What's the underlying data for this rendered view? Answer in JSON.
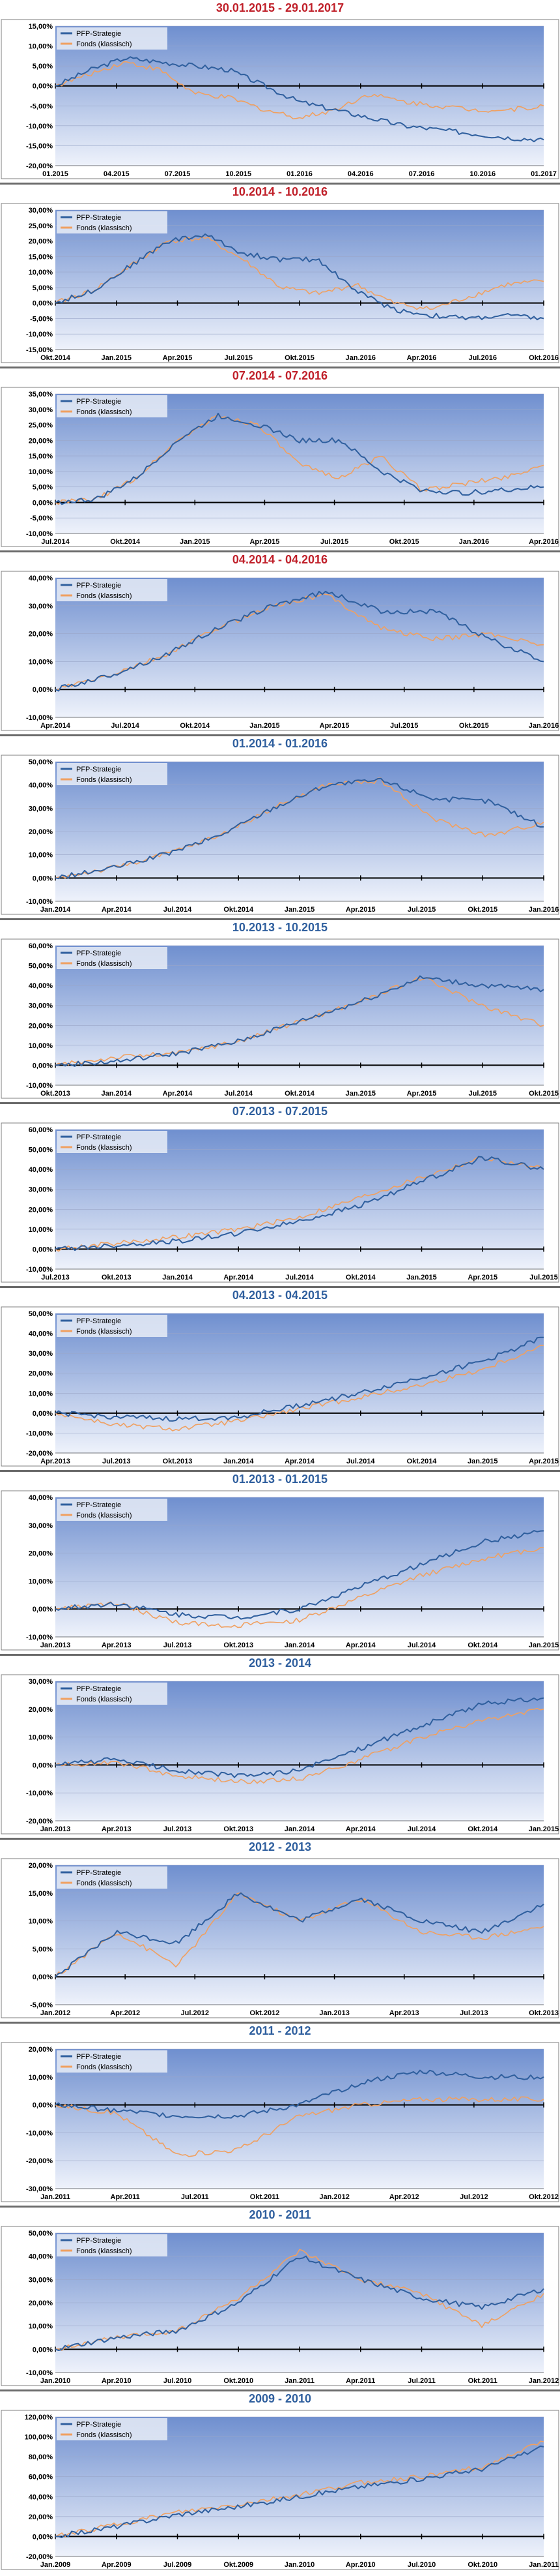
{
  "colors": {
    "strategy": "#2f5f9e",
    "fund": "#f0a060",
    "title_red": "#c0202a",
    "title_blue": "#2f5f9e"
  },
  "legend": {
    "strategy": "PFP-Strategie",
    "fund": "Fonds (klassisch)"
  },
  "chart_data": [
    {
      "type": "line",
      "title": "30.01.2015 - 29.01.2017",
      "title_color": "red",
      "ylim": [
        -20,
        15
      ],
      "yticks": [
        "15,00%",
        "10,00%",
        "5,00%",
        "0,00%",
        "-5,00%",
        "-10,00%",
        "-15,00%",
        "-20,00%"
      ],
      "xticks": [
        "01.2015",
        "04.2015",
        "07.2015",
        "10.2015",
        "01.2016",
        "04.2016",
        "07.2016",
        "10.2016",
        "01.2017"
      ],
      "series": [
        {
          "name": "PFP-Strategie",
          "values": [
            0,
            4,
            7,
            6,
            5,
            4,
            0,
            -4,
            -6,
            -8,
            -10,
            -11,
            -12,
            -13,
            -13.5
          ]
        },
        {
          "name": "Fonds (klassisch)",
          "values": [
            0,
            3,
            6,
            4,
            -2,
            -3,
            -6,
            -8,
            -6,
            -2,
            -4,
            -5,
            -6,
            -6,
            -5
          ]
        }
      ]
    },
    {
      "type": "line",
      "title": "10.2014 - 10.2016",
      "title_color": "red",
      "ylim": [
        -15,
        30
      ],
      "yticks": [
        "30,00%",
        "25,00%",
        "20,00%",
        "15,00%",
        "10,00%",
        "5,00%",
        "0,00%",
        "-5,00%",
        "-10,00%",
        "-15,00%"
      ],
      "xticks": [
        "Okt.2014",
        "Jan.2015",
        "Apr.2015",
        "Jul.2015",
        "Okt.2015",
        "Jan.2016",
        "Apr.2016",
        "Jul.2016",
        "Okt.2016"
      ],
      "series": [
        {
          "name": "PFP-Strategie",
          "values": [
            0,
            4,
            12,
            20,
            22,
            16,
            14,
            14,
            4,
            -2,
            -4,
            -5,
            -4,
            -5
          ]
        },
        {
          "name": "Fonds (klassisch)",
          "values": [
            0,
            4,
            12,
            20,
            21,
            14,
            5,
            3,
            6,
            0,
            -2,
            2,
            6,
            7
          ]
        }
      ]
    },
    {
      "type": "line",
      "title": "07.2014 - 07.2016",
      "title_color": "red",
      "ylim": [
        -10,
        35
      ],
      "yticks": [
        "35,00%",
        "30,00%",
        "25,00%",
        "20,00%",
        "15,00%",
        "10,00%",
        "5,00%",
        "0,00%",
        "-5,00%",
        "-10,00%"
      ],
      "xticks": [
        "Jul.2014",
        "Okt.2014",
        "Jan.2015",
        "Apr.2015",
        "Jul.2015",
        "Okt.2015",
        "Jan.2016",
        "Apr.2016"
      ],
      "series": [
        {
          "name": "PFP-Strategie",
          "values": [
            0,
            1,
            8,
            20,
            28,
            25,
            20,
            20,
            10,
            4,
            3,
            4,
            5
          ]
        },
        {
          "name": "Fonds (klassisch)",
          "values": [
            0,
            1,
            8,
            20,
            28,
            25,
            12,
            8,
            15,
            4,
            6,
            8,
            12
          ]
        }
      ]
    },
    {
      "type": "line",
      "title": "04.2014 - 04.2016",
      "title_color": "red",
      "ylim": [
        -10,
        40
      ],
      "yticks": [
        "40,00%",
        "30,00%",
        "20,00%",
        "10,00%",
        "0,00%",
        "-10,00%"
      ],
      "xticks": [
        "Apr.2014",
        "Jul.2014",
        "Okt.2014",
        "Jan.2015",
        "Apr.2015",
        "Jul.2015",
        "Okt.2015",
        "Jan.2016"
      ],
      "series": [
        {
          "name": "PFP-Strategie",
          "values": [
            0,
            5,
            12,
            22,
            30,
            35,
            28,
            28,
            18,
            10
          ]
        },
        {
          "name": "Fonds (klassisch)",
          "values": [
            0,
            5,
            12,
            22,
            30,
            34,
            22,
            18,
            20,
            16
          ]
        }
      ]
    },
    {
      "type": "line",
      "title": "01.2014 - 01.2016",
      "title_color": "blue",
      "ylim": [
        -10,
        50
      ],
      "yticks": [
        "50,00%",
        "40,00%",
        "30,00%",
        "20,00%",
        "10,00%",
        "0,00%",
        "-10,00%"
      ],
      "xticks": [
        "Jan.2014",
        "Apr.2014",
        "Jul.2014",
        "Okt.2014",
        "Jan.2015",
        "Apr.2015",
        "Jul.2015",
        "Okt.2015",
        "Jan.2016"
      ],
      "series": [
        {
          "name": "PFP-Strategie",
          "values": [
            0,
            4,
            10,
            18,
            30,
            40,
            42,
            34,
            33,
            22
          ]
        },
        {
          "name": "Fonds (klassisch)",
          "values": [
            0,
            4,
            10,
            18,
            30,
            40,
            42,
            25,
            18,
            24
          ]
        }
      ]
    },
    {
      "type": "line",
      "title": "10.2013 - 10.2015",
      "title_color": "blue",
      "ylim": [
        -10,
        60
      ],
      "yticks": [
        "60,00%",
        "50,00%",
        "40,00%",
        "30,00%",
        "20,00%",
        "10,00%",
        "0,00%",
        "-10,00%"
      ],
      "xticks": [
        "Okt.2013",
        "Jan.2014",
        "Apr.2014",
        "Jul.2014",
        "Okt.2014",
        "Jan.2015",
        "Apr.2015",
        "Jul.2015",
        "Okt.2015"
      ],
      "series": [
        {
          "name": "PFP-Strategie",
          "values": [
            0,
            2,
            6,
            12,
            22,
            32,
            44,
            40,
            38
          ]
        },
        {
          "name": "Fonds (klassisch)",
          "values": [
            0,
            4,
            6,
            12,
            22,
            32,
            44,
            30,
            20
          ]
        }
      ]
    },
    {
      "type": "line",
      "title": "07.2013 - 07.2015",
      "title_color": "blue",
      "ylim": [
        -10,
        60
      ],
      "yticks": [
        "60,00%",
        "50,00%",
        "40,00%",
        "30,00%",
        "20,00%",
        "10,00%",
        "0,00%",
        "-10,00%"
      ],
      "xticks": [
        "Jul.2013",
        "Okt.2013",
        "Jan.2014",
        "Apr.2014",
        "Jul.2014",
        "Okt.2014",
        "Jan.2015",
        "Apr.2015",
        "Jul.2015"
      ],
      "series": [
        {
          "name": "PFP-Strategie",
          "values": [
            0,
            2,
            4,
            8,
            14,
            22,
            34,
            46,
            40
          ]
        },
        {
          "name": "Fonds (klassisch)",
          "values": [
            0,
            3,
            6,
            10,
            16,
            26,
            36,
            46,
            40
          ]
        }
      ]
    },
    {
      "type": "line",
      "title": "04.2013 - 04.2015",
      "title_color": "blue",
      "ylim": [
        -20,
        50
      ],
      "yticks": [
        "50,00%",
        "40,00%",
        "30,00%",
        "20,00%",
        "10,00%",
        "0,00%",
        "-10,00%",
        "-20,00%"
      ],
      "xticks": [
        "Apr.2013",
        "Jul.2013",
        "Okt.2013",
        "Jan.2014",
        "Apr.2014",
        "Jul.2014",
        "Okt.2014",
        "Jan.2015",
        "Apr.2015"
      ],
      "series": [
        {
          "name": "PFP-Strategie",
          "values": [
            0,
            -2,
            -3,
            -2,
            4,
            10,
            18,
            26,
            38
          ]
        },
        {
          "name": "Fonds (klassisch)",
          "values": [
            0,
            -6,
            -8,
            -4,
            2,
            8,
            14,
            22,
            34
          ]
        }
      ]
    },
    {
      "type": "line",
      "title": "01.2013 - 01.2015",
      "title_color": "blue",
      "ylim": [
        -10,
        40
      ],
      "yticks": [
        "40,00%",
        "30,00%",
        "20,00%",
        "10,00%",
        "0,00%",
        "-10,00%"
      ],
      "xticks": [
        "Jan.2013",
        "Apr.2013",
        "Jul.2013",
        "Okt.2013",
        "Jan.2014",
        "Apr.2014",
        "Jul.2014",
        "Okt.2014",
        "Jan.2015"
      ],
      "series": [
        {
          "name": "PFP-Strategie",
          "values": [
            0,
            2,
            -2,
            -3,
            0,
            8,
            16,
            24,
            28
          ]
        },
        {
          "name": "Fonds (klassisch)",
          "values": [
            0,
            2,
            -5,
            -6,
            -4,
            4,
            12,
            18,
            22
          ]
        }
      ]
    },
    {
      "type": "line",
      "title": "2013 - 2014",
      "title_color": "blue",
      "ylim": [
        -20,
        30
      ],
      "yticks": [
        "30,00%",
        "20,00%",
        "10,00%",
        "0,00%",
        "-10,00%",
        "-20,00%"
      ],
      "xticks": [
        "Jan.2013",
        "Apr.2013",
        "Jul.2013",
        "Okt.2013",
        "Jan.2014",
        "Apr.2014",
        "Jul.2014",
        "Okt.2014",
        "Jan.2015"
      ],
      "series": [
        {
          "name": "PFP-Strategie",
          "values": [
            0,
            2,
            -2,
            -4,
            -2,
            6,
            14,
            22,
            24
          ]
        },
        {
          "name": "Fonds (klassisch)",
          "values": [
            0,
            1,
            -4,
            -6,
            -5,
            2,
            10,
            16,
            20
          ]
        }
      ]
    },
    {
      "type": "line",
      "title": "2012 - 2013",
      "title_color": "blue",
      "ylim": [
        -5,
        20
      ],
      "yticks": [
        "20,00%",
        "15,00%",
        "10,00%",
        "5,00%",
        "0,00%",
        "-5,00%"
      ],
      "xticks": [
        "Jan.2012",
        "Apr.2012",
        "Jul.2012",
        "Okt.2012",
        "Jan.2013",
        "Apr.2013",
        "Jul.2013",
        "Okt.2013"
      ],
      "series": [
        {
          "name": "PFP-Strategie",
          "values": [
            0,
            8,
            6,
            15,
            10,
            14,
            10,
            8,
            13
          ]
        },
        {
          "name": "Fonds (klassisch)",
          "values": [
            0,
            8,
            2,
            15,
            10,
            14,
            8,
            7,
            9
          ]
        }
      ]
    },
    {
      "type": "line",
      "title": "2011 - 2012",
      "title_color": "blue",
      "ylim": [
        -30,
        20
      ],
      "yticks": [
        "20,00%",
        "10,00%",
        "0,00%",
        "-10,00%",
        "-20,00%",
        "-30,00%"
      ],
      "xticks": [
        "Jan.2011",
        "Apr.2011",
        "Jul.2011",
        "Okt.2011",
        "Jan.2012",
        "Apr.2012",
        "Jul.2012",
        "Okt.2012"
      ],
      "series": [
        {
          "name": "PFP-Strategie",
          "values": [
            0,
            -2,
            -4,
            -4,
            0,
            8,
            12,
            10,
            10
          ]
        },
        {
          "name": "Fonds (klassisch)",
          "values": [
            0,
            -3,
            -18,
            -16,
            -4,
            0,
            2,
            2,
            2
          ]
        }
      ]
    },
    {
      "type": "line",
      "title": "2010 - 2011",
      "title_color": "blue",
      "ylim": [
        -10,
        50
      ],
      "yticks": [
        "50,00%",
        "40,00%",
        "30,00%",
        "20,00%",
        "10,00%",
        "0,00%",
        "-10,00%"
      ],
      "xticks": [
        "Jan.2010",
        "Apr.2010",
        "Jul.2010",
        "Okt.2010",
        "Jan.2011",
        "Apr.2011",
        "Jul.2011",
        "Okt.2011",
        "Jan.2012"
      ],
      "series": [
        {
          "name": "PFP-Strategie",
          "values": [
            0,
            5,
            8,
            20,
            40,
            30,
            22,
            18,
            26
          ]
        },
        {
          "name": "Fonds (klassisch)",
          "values": [
            0,
            5,
            8,
            22,
            42,
            30,
            24,
            10,
            24
          ]
        }
      ]
    },
    {
      "type": "line",
      "title": "2009 - 2010",
      "title_color": "blue",
      "ylim": [
        -20,
        120
      ],
      "yticks": [
        "120,00%",
        "100,00%",
        "80,00%",
        "60,00%",
        "40,00%",
        "20,00%",
        "0,00%",
        "-20,00%"
      ],
      "xticks": [
        "Jan.2009",
        "Apr.2009",
        "Jul.2009",
        "Okt.2009",
        "Jan.2010",
        "Apr.2010",
        "Jul.2010",
        "Okt.2010",
        "Jan.2011"
      ],
      "series": [
        {
          "name": "PFP-Strategie",
          "values": [
            0,
            10,
            22,
            30,
            40,
            50,
            58,
            68,
            90
          ]
        },
        {
          "name": "Fonds (klassisch)",
          "values": [
            0,
            12,
            24,
            32,
            42,
            54,
            60,
            70,
            95
          ]
        }
      ]
    }
  ]
}
